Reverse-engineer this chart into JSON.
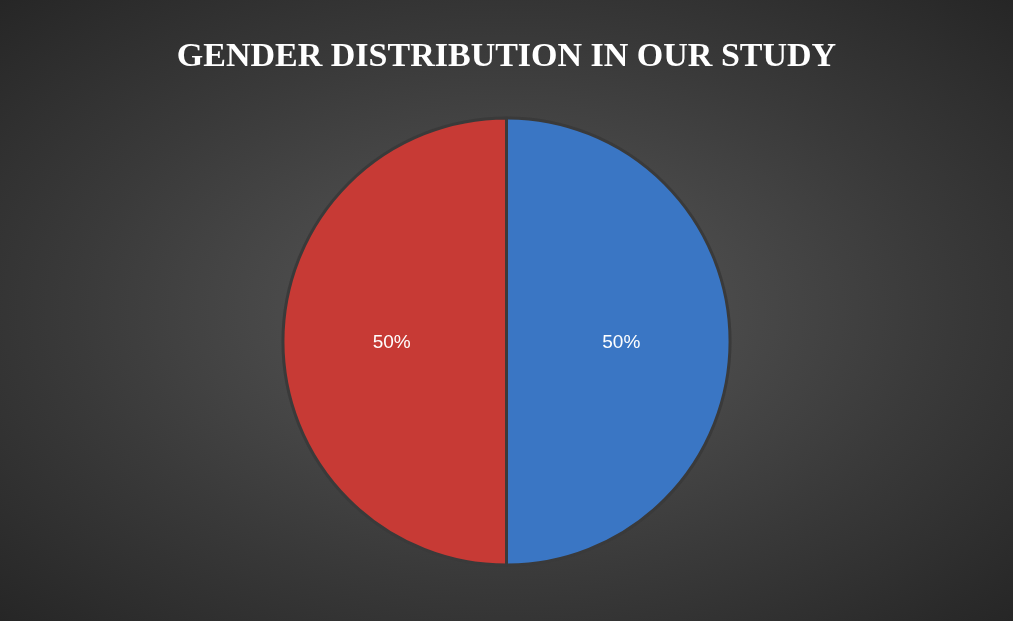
{
  "chart_data": {
    "type": "pie",
    "title": "GENDER DISTRIBUTION IN OUR STUDY",
    "categories": [
      null,
      null
    ],
    "values": [
      50,
      50
    ],
    "colors": [
      "#3a76c4",
      "#c73a35"
    ],
    "value_labels": [
      "50%",
      "50%"
    ]
  }
}
